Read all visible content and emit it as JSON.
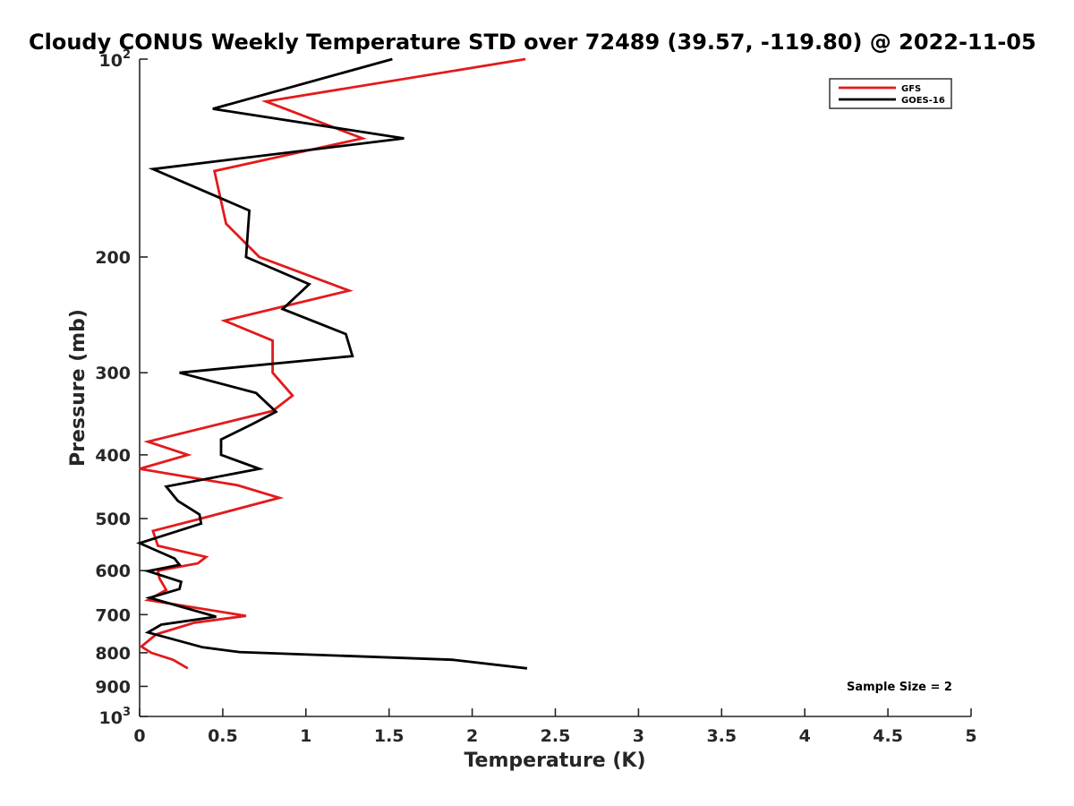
{
  "chart_data": {
    "type": "line",
    "title": "Cloudy CONUS Weekly Temperature STD over 72489 (39.57, -119.80) @ 2022-11-05",
    "xlabel": "Temperature (K)",
    "ylabel": "Pressure (mb)",
    "xlim": [
      0,
      5
    ],
    "ylim": [
      100,
      1000
    ],
    "y_scale": "log",
    "y_reversed": true,
    "grid": false,
    "legend_position": "top-right",
    "x_ticks": [
      0,
      0.5,
      1,
      1.5,
      2,
      2.5,
      3,
      3.5,
      4,
      4.5,
      5
    ],
    "x_tick_labels": [
      "0",
      "0.5",
      "1",
      "1.5",
      "2",
      "2.5",
      "3",
      "3.5",
      "4",
      "4.5",
      "5"
    ],
    "y_ticks": [
      {
        "value": 100,
        "base": "10",
        "exp": "2"
      },
      {
        "value": 200,
        "label": "200"
      },
      {
        "value": 300,
        "label": "300"
      },
      {
        "value": 400,
        "label": "400"
      },
      {
        "value": 500,
        "label": "500"
      },
      {
        "value": 600,
        "label": "600"
      },
      {
        "value": 700,
        "label": "700"
      },
      {
        "value": 800,
        "label": "800"
      },
      {
        "value": 900,
        "label": "900"
      },
      {
        "value": 1000,
        "base": "10",
        "exp": "3"
      }
    ],
    "series": [
      {
        "name": "GFS",
        "color": "#e31a1c",
        "points": [
          [
            2.32,
            100
          ],
          [
            0.76,
            116
          ],
          [
            1.34,
            132
          ],
          [
            0.45,
            148
          ],
          [
            0.52,
            178
          ],
          [
            0.72,
            200
          ],
          [
            1.26,
            225
          ],
          [
            0.51,
            250
          ],
          [
            0.8,
            268
          ],
          [
            0.8,
            300
          ],
          [
            0.92,
            325
          ],
          [
            0.8,
            343
          ],
          [
            0.05,
            382
          ],
          [
            0.29,
            400
          ],
          [
            0.0,
            420
          ],
          [
            0.59,
            445
          ],
          [
            0.84,
            465
          ],
          [
            0.37,
            500
          ],
          [
            0.08,
            522
          ],
          [
            0.11,
            550
          ],
          [
            0.4,
            572
          ],
          [
            0.35,
            585
          ],
          [
            0.11,
            600
          ],
          [
            0.12,
            617
          ],
          [
            0.16,
            642
          ],
          [
            0.05,
            665
          ],
          [
            0.64,
            703
          ],
          [
            0.33,
            720
          ],
          [
            0.1,
            750
          ],
          [
            0.01,
            783
          ],
          [
            0.07,
            800
          ],
          [
            0.2,
            820
          ],
          [
            0.29,
            845
          ]
        ]
      },
      {
        "name": "GOES-16",
        "color": "#000000",
        "points": [
          [
            1.52,
            100
          ],
          [
            0.44,
            119
          ],
          [
            1.59,
            132
          ],
          [
            0.08,
            147
          ],
          [
            0.66,
            170
          ],
          [
            0.64,
            200
          ],
          [
            1.02,
            220
          ],
          [
            0.86,
            240
          ],
          [
            1.24,
            262
          ],
          [
            1.28,
            283
          ],
          [
            0.24,
            300
          ],
          [
            0.7,
            322
          ],
          [
            0.82,
            344
          ],
          [
            0.68,
            359
          ],
          [
            0.49,
            379
          ],
          [
            0.49,
            400
          ],
          [
            0.72,
            420
          ],
          [
            0.16,
            447
          ],
          [
            0.23,
            470
          ],
          [
            0.36,
            493
          ],
          [
            0.37,
            509
          ],
          [
            0.13,
            532
          ],
          [
            0.0,
            545
          ],
          [
            0.21,
            575
          ],
          [
            0.24,
            588
          ],
          [
            0.05,
            601
          ],
          [
            0.25,
            624
          ],
          [
            0.24,
            640
          ],
          [
            0.06,
            660
          ],
          [
            0.46,
            705
          ],
          [
            0.13,
            725
          ],
          [
            0.05,
            745
          ],
          [
            0.38,
            785
          ],
          [
            0.6,
            798
          ],
          [
            1.88,
            820
          ],
          [
            2.33,
            845
          ]
        ]
      }
    ],
    "legend_entries": [
      "GFS",
      "GOES-16"
    ],
    "annotations": [
      "Sample Size = 2"
    ]
  }
}
